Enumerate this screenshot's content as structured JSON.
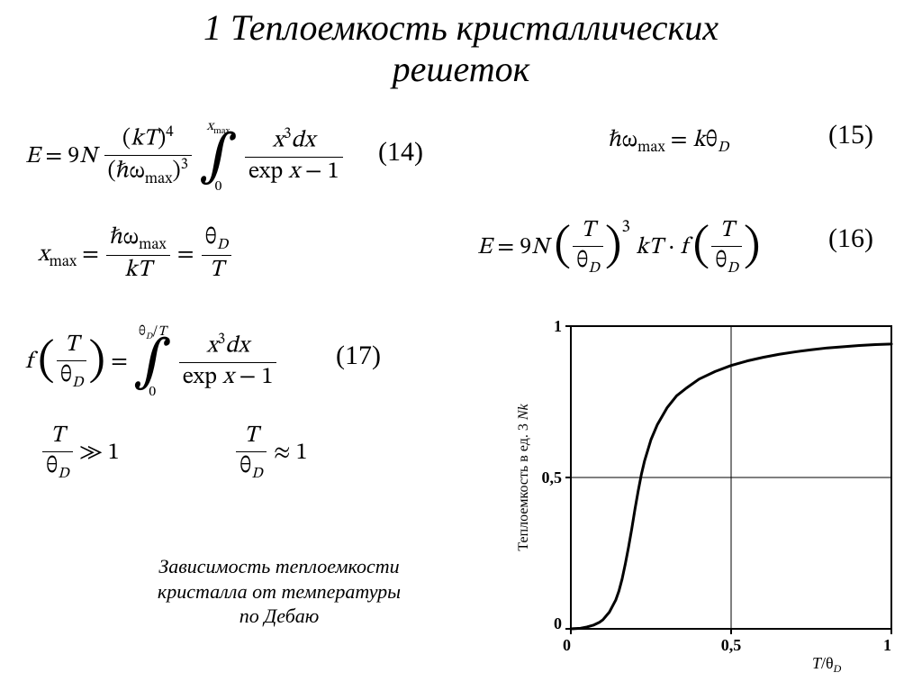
{
  "title_line1": "1 Теплоемкость кристаллических",
  "title_line2": "решеток",
  "eqnums": {
    "n14": "(14)",
    "n15": "(15)",
    "n16": "(16)",
    "n17": "(17)"
  },
  "caption_l1": "Зависимость теплоемкости",
  "caption_l2": "кристалла от температуры",
  "caption_l3": "по Дебаю",
  "chart": {
    "type": "line",
    "xlabel": "T/θD",
    "ylabel": "Теплоемкость в ед. 3 Nk",
    "xlim": [
      0,
      1
    ],
    "ylim": [
      0,
      1
    ],
    "xticks": [
      0,
      0.5,
      1
    ],
    "yticks": [
      0,
      0.5,
      1
    ],
    "xtick_labels": [
      "0",
      "0,5",
      "1"
    ],
    "ytick_labels": [
      "0",
      "0,5",
      "1"
    ],
    "grid_x": [
      0.5
    ],
    "grid_y": [
      0.5
    ],
    "background_color": "#ffffff",
    "axis_color": "#000000",
    "grid_color": "#000000",
    "curve_color": "#000000",
    "curve_width": 3,
    "axis_width": 2,
    "grid_width": 1,
    "label_fontsize": 16,
    "tick_fontsize": 18,
    "pts": [
      [
        0.0,
        0.0
      ],
      [
        0.03,
        0.002
      ],
      [
        0.05,
        0.006
      ],
      [
        0.07,
        0.012
      ],
      [
        0.09,
        0.022
      ],
      [
        0.1,
        0.03
      ],
      [
        0.12,
        0.055
      ],
      [
        0.14,
        0.095
      ],
      [
        0.15,
        0.125
      ],
      [
        0.16,
        0.165
      ],
      [
        0.17,
        0.215
      ],
      [
        0.18,
        0.27
      ],
      [
        0.19,
        0.33
      ],
      [
        0.2,
        0.395
      ],
      [
        0.21,
        0.455
      ],
      [
        0.22,
        0.51
      ],
      [
        0.23,
        0.555
      ],
      [
        0.25,
        0.625
      ],
      [
        0.27,
        0.675
      ],
      [
        0.3,
        0.73
      ],
      [
        0.33,
        0.77
      ],
      [
        0.36,
        0.795
      ],
      [
        0.4,
        0.825
      ],
      [
        0.45,
        0.85
      ],
      [
        0.5,
        0.87
      ],
      [
        0.55,
        0.885
      ],
      [
        0.6,
        0.897
      ],
      [
        0.65,
        0.907
      ],
      [
        0.7,
        0.915
      ],
      [
        0.75,
        0.922
      ],
      [
        0.8,
        0.928
      ],
      [
        0.85,
        0.932
      ],
      [
        0.9,
        0.936
      ],
      [
        0.95,
        0.939
      ],
      [
        1.0,
        0.941
      ]
    ]
  }
}
